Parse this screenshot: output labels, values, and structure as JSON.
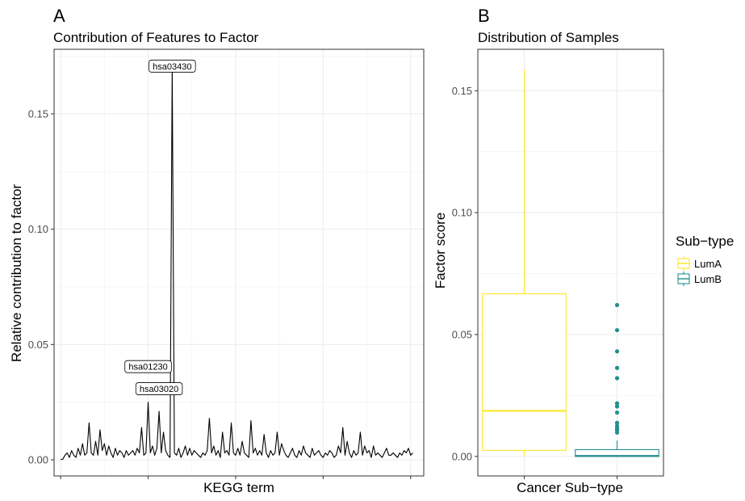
{
  "panel_a": {
    "tag": "A",
    "title": "Contribution of Features to Factor",
    "xlabel": "KEGG term",
    "ylabel": "Relative contribution to factor"
  },
  "panel_b": {
    "tag": "B",
    "title": "Distribution of Samples",
    "xlabel": "Cancer Sub−type",
    "ylabel": "Factor score"
  },
  "legend": {
    "title": "Sub−type",
    "items": [
      {
        "label": "LumA",
        "color": "#FDE725"
      },
      {
        "label": "LumB",
        "color": "#21908C"
      }
    ]
  },
  "chart_data": [
    {
      "type": "line",
      "title": "Contribution of Features to Factor",
      "xlabel": "KEGG term",
      "ylabel": "Relative contribution to factor",
      "ylim": [
        -0.007,
        0.178
      ],
      "xlim": [
        -3,
        166
      ],
      "yticks": [
        0.0,
        0.05,
        0.1,
        0.15
      ],
      "ytick_labels": [
        "0.00",
        "0.05",
        "0.10",
        "0.15"
      ],
      "grid": true,
      "line_color": "#000000",
      "y": [
        0.0001,
        0.0003,
        0.002,
        0.003,
        0.001,
        0.004,
        0.002,
        0.001,
        0.005,
        0.002,
        0.007,
        0.002,
        0.003,
        0.016,
        0.003,
        0.002,
        0.008,
        0.002,
        0.013,
        0.004,
        0.007,
        0.002,
        0.006,
        0.003,
        0.001,
        0.005,
        0.002,
        0.004,
        0.003,
        0.001,
        0.004,
        0.002,
        0.003,
        0.004,
        0.002,
        0.005,
        0.003,
        0.014,
        0.002,
        0.003,
        0.025,
        0.003,
        0.006,
        0.002,
        0.005,
        0.021,
        0.003,
        0.012,
        0.004,
        0.002,
        0.001,
        0.17,
        0.003,
        0.002,
        0.005,
        0.001,
        0.003,
        0.006,
        0.002,
        0.005,
        0.002,
        0.004,
        0.003,
        0.002,
        0.001,
        0.003,
        0.002,
        0.004,
        0.018,
        0.003,
        0.006,
        0.002,
        0.004,
        0.001,
        0.012,
        0.003,
        0.004,
        0.002,
        0.016,
        0.003,
        0.002,
        0.005,
        0.002,
        0.008,
        0.003,
        0.002,
        0.001,
        0.017,
        0.003,
        0.005,
        0.002,
        0.004,
        0.002,
        0.011,
        0.003,
        0.001,
        0.004,
        0.002,
        0.003,
        0.012,
        0.002,
        0.007,
        0.004,
        0.002,
        0.001,
        0.003,
        0.005,
        0.002,
        0.001,
        0.004,
        0.002,
        0.006,
        0.003,
        0.002,
        0.001,
        0.005,
        0.002,
        0.003,
        0.004,
        0.002,
        0.001,
        0.003,
        0.002,
        0.004,
        0.003,
        0.001,
        0.002,
        0.006,
        0.003,
        0.014,
        0.002,
        0.008,
        0.003,
        0.001,
        0.004,
        0.002,
        0.003,
        0.012,
        0.002,
        0.006,
        0.003,
        0.004,
        0.001,
        0.006,
        0.002,
        0.003,
        0.002,
        0.001,
        0.003,
        0.005,
        0.002,
        0.002,
        0.003,
        0.002,
        0.001,
        0.003,
        0.002,
        0.004,
        0.003,
        0.005,
        0.002,
        0.003
      ],
      "annotations": [
        {
          "label": "hsa03430",
          "index": 51,
          "y": 0.17
        },
        {
          "label": "hsa01230",
          "index": 40,
          "y": 0.025
        },
        {
          "label": "hsa03020",
          "index": 45,
          "y": 0.021
        }
      ]
    },
    {
      "type": "box",
      "title": "Distribution of Samples",
      "xlabel": "Cancer Sub−type",
      "ylabel": "Factor score",
      "categories": [
        "LumA",
        "LumB"
      ],
      "ylim": [
        -0.008,
        0.167
      ],
      "yticks": [
        0.0,
        0.05,
        0.1,
        0.15
      ],
      "ytick_labels": [
        "0.00",
        "0.05",
        "0.10",
        "0.15"
      ],
      "grid": true,
      "boxes": [
        {
          "name": "LumA",
          "color": "#FDE725",
          "min": 0.0003,
          "q1": 0.0025,
          "median": 0.0187,
          "q3": 0.0667,
          "max": 0.1588,
          "outliers": []
        },
        {
          "name": "LumB",
          "color": "#21908C",
          "min": 0.0,
          "q1": 0.0,
          "median": 0.0002,
          "q3": 0.0028,
          "max": 0.0065,
          "outliers": [
            0.0621,
            0.0518,
            0.0431,
            0.0363,
            0.0321,
            0.0218,
            0.0205,
            0.018,
            0.0138,
            0.0125,
            0.0115,
            0.0108,
            0.0098
          ]
        }
      ],
      "legend_position": "right"
    }
  ]
}
